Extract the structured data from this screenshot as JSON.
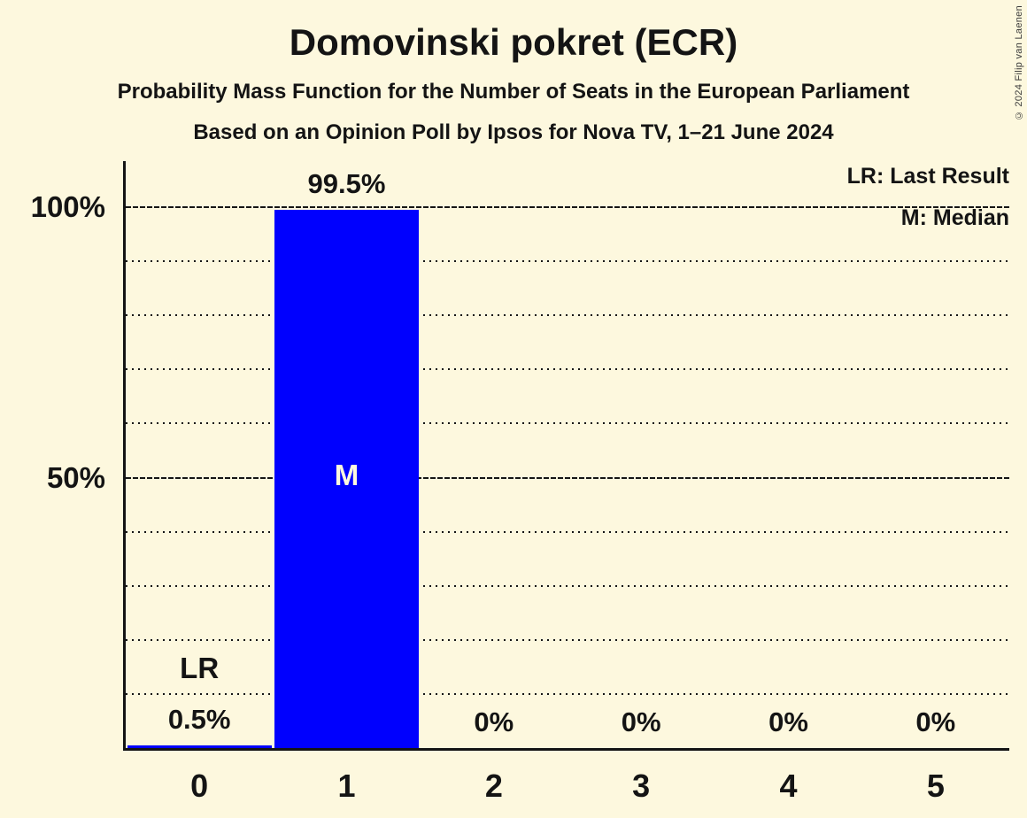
{
  "copyright": "© 2024 Filip van Laenen",
  "colors": {
    "background": "#FDF8DE",
    "bar": "#0000FE",
    "text": "#141414",
    "grid": "#151515",
    "median_label": "#FDF8DE"
  },
  "chart_data": {
    "type": "bar",
    "title": "Domovinski pokret (ECR)",
    "subtitle": "Probability Mass Function for the Number of Seats in the European Parliament",
    "source_line": "Based on an Opinion Poll by Ipsos for Nova TV, 1–21 June 2024",
    "categories": [
      "0",
      "1",
      "2",
      "3",
      "4",
      "5"
    ],
    "values": [
      0.5,
      99.5,
      0,
      0,
      0,
      0
    ],
    "bar_labels": [
      "0.5%",
      "99.5%",
      "0%",
      "0%",
      "0%",
      "0%"
    ],
    "xlabel": "",
    "ylabel": "",
    "ylim": [
      0,
      100
    ],
    "y_ticks": [
      {
        "value": 100,
        "label": "100%"
      },
      {
        "value": 50,
        "label": "50%"
      }
    ],
    "grid": {
      "major": "dashed lines at 50% and 100%",
      "minor": "dotted lines every 10%"
    },
    "legend_position": "top-right",
    "legend": [
      {
        "key": "LR",
        "label": "LR: Last Result"
      },
      {
        "key": "M",
        "label": "M: Median"
      }
    ],
    "annotations": [
      {
        "category": "0",
        "text": "LR",
        "meaning": "Last Result",
        "placement": "above-value-label"
      },
      {
        "category": "1",
        "text": "M",
        "meaning": "Median",
        "placement": "bar-center"
      }
    ]
  }
}
